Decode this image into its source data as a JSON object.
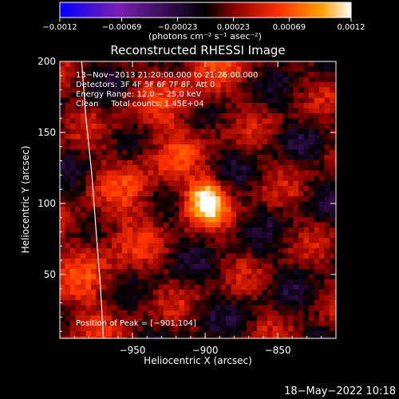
{
  "chart_data": {
    "type": "heatmap",
    "title": "Reconstructed RHESSI Image",
    "xlabel": "Heliocentric X (arcsec)",
    "ylabel": "Heliocentric Y (arcsec)",
    "xlim": [
      -1000,
      -810
    ],
    "ylim": [
      5,
      200
    ],
    "xticks": [
      -950,
      -900,
      -850
    ],
    "xtick_labels": [
      "−950",
      "−900",
      "−850"
    ],
    "yticks": [
      50,
      100,
      150,
      200
    ],
    "ytick_labels": [
      "50",
      "100",
      "150",
      "200"
    ],
    "colorbar": {
      "range": [
        -0.0012,
        0.0012
      ],
      "ticks": [
        -0.0012,
        -0.00069,
        -0.00023,
        0.00023,
        0.00069,
        0.0012
      ],
      "tick_labels": [
        "−0.0012",
        "−0.00069",
        "−0.00023",
        "0.00023",
        "0.00069",
        "0.0012"
      ],
      "unit_label": "(photons cm⁻² s⁻¹ asec⁻²)",
      "colors": [
        "#0000ff",
        "#7a1fb5",
        "#000000",
        "#8a0000",
        "#ff3000",
        "#ffa000",
        "#ffffff"
      ]
    },
    "annotations": [
      "13−Nov−2013 21:20:00.000 to 21:26:00.000",
      "Detectors: 3F 4F 5F 6F 7F 8F, Att 0",
      "Energy Range: 12.0 − 25.0 keV",
      "Clean     Total counts: 1.45E+04"
    ],
    "peak_label": "Position of Peak = [−901,104]",
    "peak": [
      -901,
      104
    ],
    "limb_arc": [
      [
        -985,
        200
      ],
      [
        -982,
        160
      ],
      [
        -978,
        120
      ],
      [
        -975,
        80
      ],
      [
        -972,
        40
      ],
      [
        -970,
        5
      ]
    ],
    "grid": false
  },
  "footer": {
    "date": "18−May−2022 10:18"
  }
}
